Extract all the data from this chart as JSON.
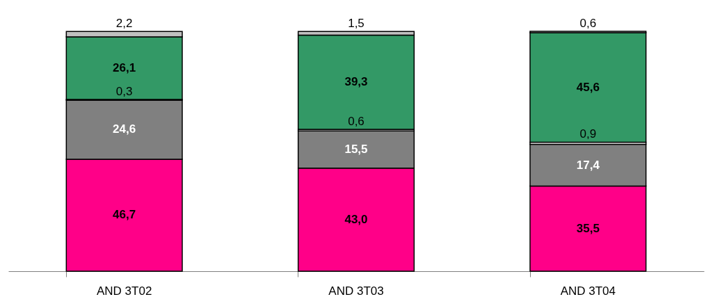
{
  "chart_data": {
    "type": "bar",
    "stacked": true,
    "categories": [
      "AND 3T02",
      "AND 3T03",
      "AND 3T04"
    ],
    "series": [
      {
        "color": "#ff0088",
        "values": [
          46.7,
          43.0,
          35.5
        ],
        "value_labels": [
          "46,7",
          "43,0",
          "35,5"
        ]
      },
      {
        "color": "#808080",
        "values": [
          24.6,
          15.5,
          17.4
        ],
        "value_labels": [
          "24,6",
          "15,5",
          "17,4"
        ]
      },
      {
        "color": "#ffffff",
        "values": [
          0.3,
          0.6,
          0.9
        ],
        "value_labels": [
          "0,3",
          "0,6",
          "0,9"
        ]
      },
      {
        "color": "#339966",
        "values": [
          26.1,
          39.3,
          45.6
        ],
        "value_labels": [
          "26,1",
          "39,3",
          "45,6"
        ]
      },
      {
        "color": "#c0c0c0",
        "values": [
          2.2,
          1.5,
          0.6
        ],
        "value_labels": [
          "2,2",
          "1,5",
          "0,6"
        ]
      }
    ],
    "data_labels": false
  }
}
